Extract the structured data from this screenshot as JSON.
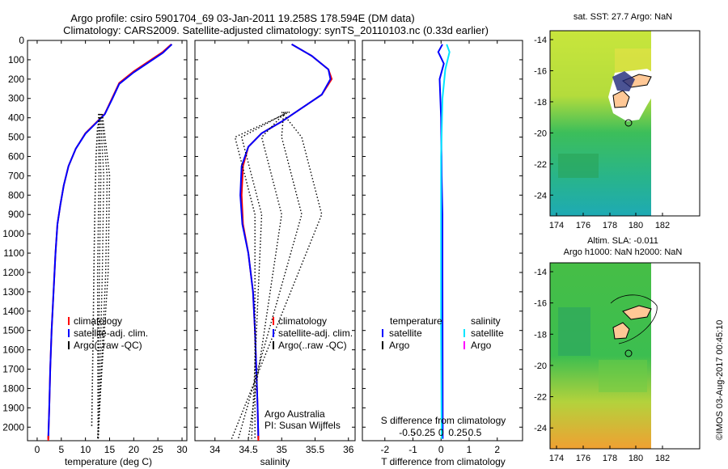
{
  "title": {
    "line1": "Argo profile: csiro 5901704_69 03-Jan-2011 19.258S 178.594E (DM data)",
    "line2": "Climatology: CARS2009. Satellite-adjusted climatology: synTS_20110103.nc (0.33d earlier)"
  },
  "colors": {
    "climatology": "#ff0000",
    "satellite": "#0000ff",
    "argo": "#000000",
    "sal_satellite": "#00e5ff",
    "sal_argo": "#ff00ff"
  },
  "chart_data": [
    {
      "type": "line",
      "xlabel": "temperature (deg C)",
      "ylabel": "",
      "xlim": [
        -2,
        31
      ],
      "ylim": [
        2070,
        0
      ],
      "xticks": [
        0,
        5,
        10,
        15,
        20,
        25,
        30
      ],
      "yticks": [
        0,
        100,
        200,
        300,
        400,
        500,
        600,
        700,
        800,
        900,
        1000,
        1100,
        1200,
        1300,
        1400,
        1500,
        1600,
        1700,
        1800,
        1900,
        2000
      ],
      "legend": {
        "placement": "bottom-left",
        "items": [
          "climatology",
          "satellite-adj. clim.",
          "Argo(..raw -QC)"
        ]
      },
      "series": [
        {
          "name": "climatology",
          "color": "#ff0000",
          "points": [
            [
              27.8,
              20
            ],
            [
              26,
              60
            ],
            [
              23,
              110
            ],
            [
              20,
              160
            ],
            [
              17,
              220
            ],
            [
              15.5,
              300
            ],
            [
              14,
              380
            ],
            [
              12,
              430
            ],
            [
              10,
              480
            ],
            [
              8,
              560
            ],
            [
              6.5,
              650
            ],
            [
              5.5,
              750
            ],
            [
              4.8,
              850
            ],
            [
              4.2,
              950
            ],
            [
              3.8,
              1100
            ],
            [
              3.4,
              1300
            ],
            [
              3.0,
              1500
            ],
            [
              2.7,
              1700
            ],
            [
              2.5,
              1900
            ],
            [
              2.3,
              2060
            ]
          ]
        },
        {
          "name": "satellite-adj. clim.",
          "color": "#0000ff",
          "points": [
            [
              27.9,
              20
            ],
            [
              26,
              65
            ],
            [
              23,
              115
            ],
            [
              20,
              165
            ],
            [
              17,
              225
            ],
            [
              15.5,
              305
            ],
            [
              14,
              382
            ],
            [
              12,
              432
            ],
            [
              10,
              482
            ],
            [
              8,
              560
            ],
            [
              6.5,
              650
            ],
            [
              5.5,
              750
            ],
            [
              4.8,
              850
            ],
            [
              4.2,
              950
            ],
            [
              3.8,
              1100
            ],
            [
              3.4,
              1300
            ],
            [
              3.0,
              1500
            ],
            [
              2.7,
              1700
            ],
            [
              2.5,
              1900
            ],
            [
              2.3,
              2060
            ]
          ]
        },
        {
          "name": "Argo(..raw -QC)",
          "color": "#000000",
          "dotted": true,
          "points": [
            [
              13,
              400
            ],
            [
              12.5,
              450
            ],
            [
              12.2,
              600
            ],
            [
              12,
              800
            ],
            [
              11.8,
              1100
            ],
            [
              11.6,
              1500
            ],
            [
              11.3,
              2000
            ]
          ]
        }
      ]
    },
    {
      "type": "line",
      "xlabel": "salinity",
      "xlim": [
        33.7,
        36.1
      ],
      "ylim": [
        2070,
        0
      ],
      "xticks": [
        34,
        34.5,
        35,
        35.5,
        36
      ],
      "legend": {
        "placement": "bottom-right",
        "items": [
          "climatology",
          "satellite-adj. clim.",
          "Argo(..raw -QC)"
        ]
      },
      "annotation": [
        "Argo Australia",
        "PI: Susan Wijffels"
      ],
      "series": [
        {
          "name": "climatology",
          "color": "#ff0000",
          "points": [
            [
              35.15,
              20
            ],
            [
              35.45,
              80
            ],
            [
              35.7,
              150
            ],
            [
              35.75,
              200
            ],
            [
              35.6,
              280
            ],
            [
              35.3,
              350
            ],
            [
              35.0,
              420
            ],
            [
              34.7,
              480
            ],
            [
              34.5,
              550
            ],
            [
              34.42,
              650
            ],
            [
              34.4,
              800
            ],
            [
              34.42,
              950
            ],
            [
              34.5,
              1100
            ],
            [
              34.57,
              1300
            ],
            [
              34.6,
              1500
            ],
            [
              34.62,
              1700
            ],
            [
              34.64,
              1900
            ],
            [
              34.65,
              2060
            ]
          ]
        },
        {
          "name": "satellite-adj. clim.",
          "color": "#0000ff",
          "points": [
            [
              35.15,
              20
            ],
            [
              35.45,
              80
            ],
            [
              35.7,
              150
            ],
            [
              35.73,
              200
            ],
            [
              35.6,
              280
            ],
            [
              35.3,
              350
            ],
            [
              35.0,
              420
            ],
            [
              34.7,
              480
            ],
            [
              34.5,
              550
            ],
            [
              34.4,
              650
            ],
            [
              34.38,
              800
            ],
            [
              34.41,
              950
            ],
            [
              34.5,
              1100
            ],
            [
              34.57,
              1300
            ],
            [
              34.6,
              1500
            ],
            [
              34.62,
              1700
            ],
            [
              34.64,
              1900
            ],
            [
              34.65,
              2060
            ]
          ]
        }
      ]
    },
    {
      "type": "line",
      "xlabel": "T difference from climatology",
      "xlabel2": "S difference from climatology",
      "xlim": [
        -2.8,
        2.9
      ],
      "ylim": [
        2070,
        0
      ],
      "xticks": [
        "-2",
        "-1",
        "0",
        "1",
        "2"
      ],
      "xticks2": [
        "-0.5",
        "-0.25",
        "0",
        "0.25",
        "0.5"
      ],
      "legend": {
        "placement": "bottom",
        "temperature_heading": "temperature",
        "salinity_heading": "salinity",
        "items": [
          "satellite",
          "Argo",
          "satellite",
          "Argo"
        ]
      },
      "series": [
        {
          "name": "satellite",
          "color": "#0000ff",
          "points": [
            [
              0.05,
              20
            ],
            [
              -0.1,
              60
            ],
            [
              0.1,
              120
            ],
            [
              -0.05,
              200
            ],
            [
              0.0,
              400
            ],
            [
              0.02,
              700
            ],
            [
              0.05,
              900
            ],
            [
              0.05,
              1200
            ],
            [
              0.06,
              2060
            ]
          ]
        },
        {
          "name": "salinity satellite",
          "color": "#00e5ff",
          "points": [
            [
              0.2,
              20
            ],
            [
              0.3,
              60
            ],
            [
              0.15,
              150
            ],
            [
              0.05,
              300
            ],
            [
              0.0,
              600
            ],
            [
              0.0,
              900
            ],
            [
              0.0,
              1500
            ],
            [
              0.02,
              2060
            ]
          ]
        }
      ]
    }
  ],
  "maps": [
    {
      "title": "sat. SST: 27.7 Argo: NaN",
      "xticks": [
        "174",
        "176",
        "178",
        "180",
        "182"
      ],
      "yticks": [
        "-14",
        "-16",
        "-18",
        "-20",
        "-22",
        "-24"
      ]
    },
    {
      "title_line1": "Altim. SLA: -0.011",
      "title_line2": "Argo h1000: NaN h2000: NaN",
      "xticks": [
        "174",
        "176",
        "178",
        "180",
        "182"
      ],
      "yticks": [
        "-14",
        "-16",
        "-18",
        "-20",
        "-22",
        "-24"
      ]
    }
  ],
  "credit": "©IMOS 03-Aug-2017 00:45:10"
}
